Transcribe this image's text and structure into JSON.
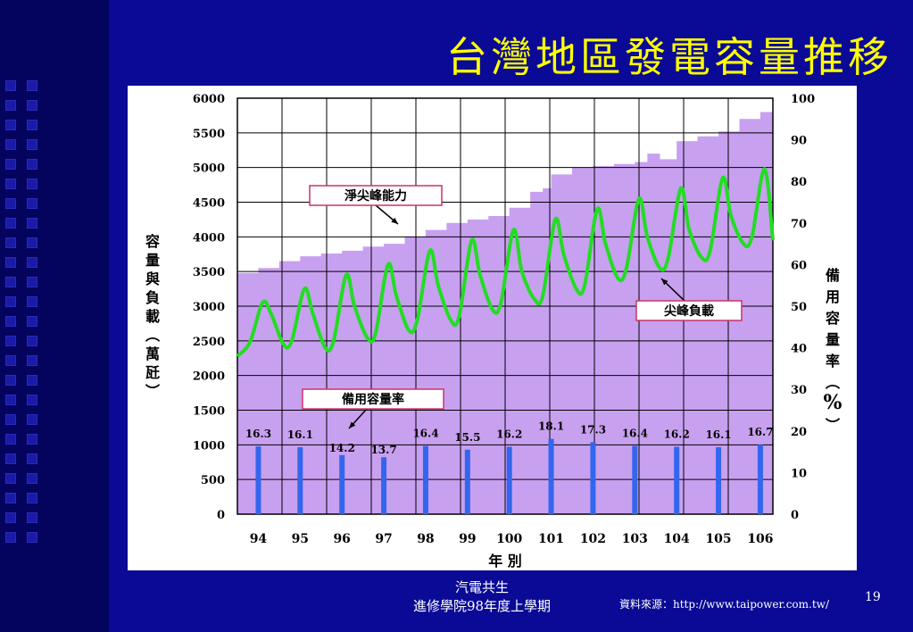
{
  "slide": {
    "title": "台灣地區發電容量推移",
    "footer_line1": "汽電共生",
    "footer_line2": "進修學院98年度上學期",
    "source": "資料來源：http://www.taipower.com.tw/",
    "page_number": "19"
  },
  "colors": {
    "background": "#0a0a96",
    "title": "#ffff00",
    "capacity_fill": "#c8a0f0",
    "peak_load_line": "#22dd22",
    "reserve_bar": "#3366ee"
  },
  "chart_data": {
    "type": "area",
    "x_ticks": [
      "94",
      "95",
      "96",
      "97",
      "98",
      "99",
      "100",
      "101",
      "102",
      "103",
      "104",
      "105",
      "106"
    ],
    "x_label": "年 別",
    "y_left_label": "容量與負載︵萬瓩︶",
    "y_left_ticks": [
      "0",
      "500",
      "1000",
      "1500",
      "2000",
      "2500",
      "3000",
      "3500",
      "4000",
      "4500",
      "5000",
      "5500",
      "6000"
    ],
    "y_left_lim": [
      0,
      6000
    ],
    "y_right_label": "備用容量率︵%︶",
    "y_right_ticks": [
      "0",
      "10",
      "20",
      "30",
      "40",
      "50",
      "60",
      "70",
      "80",
      "90",
      "100"
    ],
    "y_right_lim": [
      0,
      100
    ],
    "grid": true,
    "series": [
      {
        "name": "淨尖峰能力",
        "kind": "step-area",
        "unit": "萬瓩",
        "x": [
          93.5,
          94.0,
          94.5,
          95.0,
          95.5,
          96.0,
          96.5,
          97.0,
          97.5,
          98.0,
          98.5,
          99.0,
          99.5,
          100.0,
          100.5,
          100.8,
          101.0,
          101.5,
          102.0,
          102.5,
          103.0,
          103.3,
          103.6,
          104.0,
          104.5,
          105.0,
          105.5,
          106.0,
          106.3
        ],
        "values": [
          3480,
          3550,
          3650,
          3720,
          3760,
          3800,
          3860,
          3900,
          4000,
          4100,
          4200,
          4250,
          4300,
          4420,
          4650,
          4700,
          4900,
          5000,
          5020,
          5050,
          5080,
          5200,
          5120,
          5380,
          5450,
          5520,
          5700,
          5800,
          5730
        ]
      },
      {
        "name": "尖峰負載",
        "kind": "line",
        "unit": "萬瓩",
        "x": [
          93.5,
          93.8,
          94.1,
          94.3,
          94.6,
          94.8,
          95.1,
          95.3,
          95.6,
          95.8,
          96.1,
          96.3,
          96.6,
          96.8,
          97.1,
          97.3,
          97.6,
          97.8,
          98.1,
          98.3,
          98.6,
          98.8,
          99.1,
          99.3,
          99.6,
          99.8,
          100.1,
          100.3,
          100.6,
          100.8,
          101.1,
          101.3,
          101.6,
          101.8,
          102.1,
          102.3,
          102.6,
          102.8,
          103.1,
          103.3,
          103.6,
          103.8,
          104.1,
          104.3,
          104.6,
          104.8,
          105.1,
          105.3,
          105.6,
          105.8,
          106.1,
          106.3
        ],
        "values": [
          2280,
          2480,
          3050,
          2900,
          2450,
          2500,
          3250,
          2900,
          2400,
          2500,
          3450,
          3000,
          2550,
          2600,
          3600,
          3150,
          2650,
          2800,
          3800,
          3300,
          2800,
          2850,
          3950,
          3450,
          2950,
          3050,
          4100,
          3500,
          3100,
          3150,
          4250,
          3750,
          3250,
          3300,
          4400,
          3900,
          3400,
          3550,
          4550,
          4000,
          3550,
          3700,
          4700,
          4100,
          3700,
          3800,
          4850,
          4300,
          3900,
          4000,
          4980,
          3950
        ]
      },
      {
        "name": "備用容量率",
        "kind": "bar",
        "unit": "%",
        "categories": [
          "94",
          "95",
          "96",
          "97",
          "98",
          "99",
          "100",
          "101",
          "102",
          "103",
          "104",
          "105",
          "106"
        ],
        "values": [
          16.3,
          16.1,
          14.2,
          13.7,
          16.4,
          15.5,
          16.2,
          18.1,
          17.3,
          16.4,
          16.2,
          16.1,
          16.7
        ]
      }
    ]
  }
}
